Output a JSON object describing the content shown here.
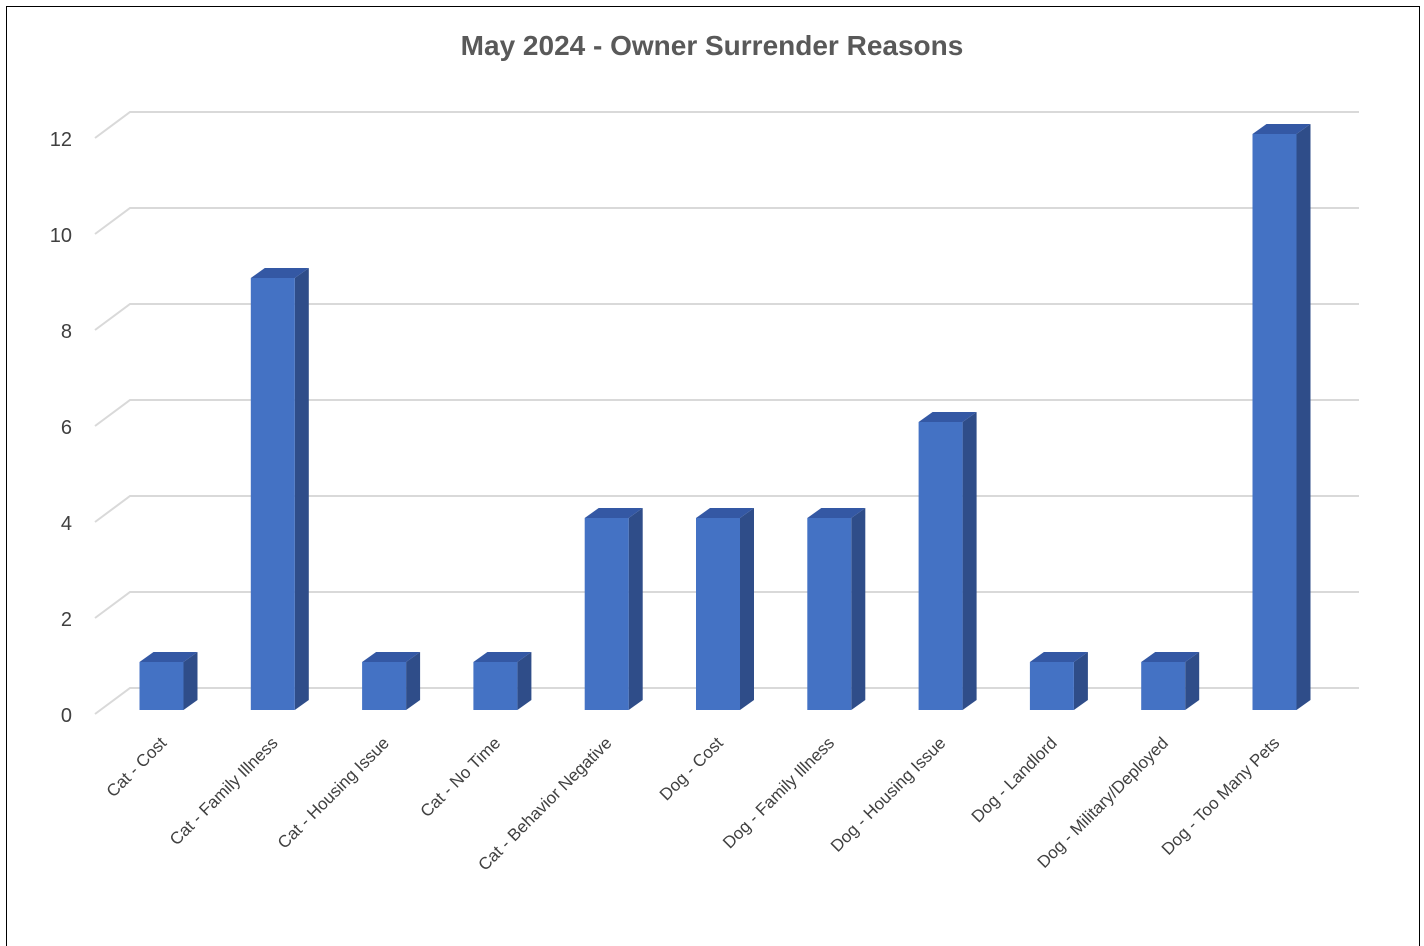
{
  "chart_data": {
    "type": "bar",
    "title": "May 2024 - Owner Surrender Reasons",
    "xlabel": "",
    "ylabel": "",
    "ylim": [
      0,
      12
    ],
    "yticks": [
      0,
      2,
      4,
      6,
      8,
      10,
      12
    ],
    "grid": true,
    "legend": "none",
    "style": "3d-column",
    "colors": {
      "front": "#4472C4",
      "side": "#2F4D89",
      "top": "#3458A4",
      "grid": "#D9D9D9"
    },
    "categories": [
      "Cat - Cost",
      "Cat - Family Illness",
      "Cat - Housing Issue",
      "Cat - No Time",
      "Cat - Behavior Negative",
      "Dog - Cost",
      "Dog - Family Illness",
      "Dog - Housing Issue",
      "Dog - Landlord",
      "Dog - Military/Deployed",
      "Dog - Too Many Pets"
    ],
    "values": [
      1,
      9,
      1,
      1,
      4,
      4,
      4,
      6,
      1,
      1,
      12
    ]
  }
}
